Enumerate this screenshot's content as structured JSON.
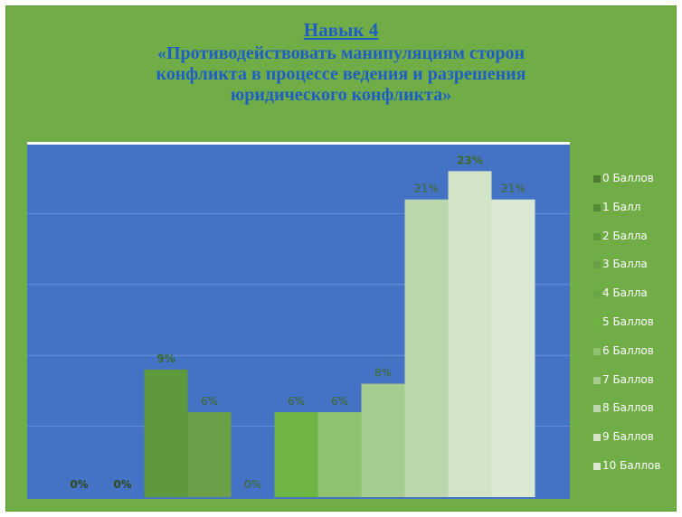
{
  "chart_data": {
    "type": "bar",
    "title_lines": [
      "Навык 4",
      "«Противодействовать манипуляциям сторон",
      "конфликта в процессе ведения и разрешения",
      "юридического конфликта»"
    ],
    "categories": [
      "0 Баллов",
      "1 Балл",
      "2 Балла",
      "3 Балла",
      "4 Балла",
      "5 Баллов",
      "6 Баллов",
      "7 Баллов",
      "8 Баллов",
      "9 Баллов",
      "10 Баллов"
    ],
    "values": [
      0,
      0,
      9,
      6,
      0,
      6,
      6,
      8,
      21,
      23,
      21
    ],
    "data_labels": [
      "0%",
      "0%",
      "9%",
      "6%",
      "0%",
      "6%",
      "6%",
      "8%",
      "21%",
      "23%",
      "21%"
    ],
    "ylim": [
      0,
      25
    ],
    "grid": true,
    "legend_position": "right",
    "xlabel": "",
    "ylabel": ""
  },
  "colors": {
    "frame_background": "#70ad47",
    "plot_background": "#4472c4",
    "title_color": "#1f5fc4",
    "series": [
      "#4e7d32",
      "#558a37",
      "#5e9a3c",
      "#6ba048",
      "#68a545",
      "#6eb544",
      "#8ec270",
      "#a7cc8f",
      "#bcd6ad",
      "#d2e3c8",
      "#dbe9d3"
    ],
    "label_colors": [
      "#2e4a1b",
      "#2e4a1b",
      "#3b6a24",
      "#3b6a24",
      "#3b6a24",
      "#3b6a24",
      "#3b6a24",
      "#3b6a24",
      "#3b6a24",
      "#3b6a24",
      "#3b6a24"
    ]
  }
}
